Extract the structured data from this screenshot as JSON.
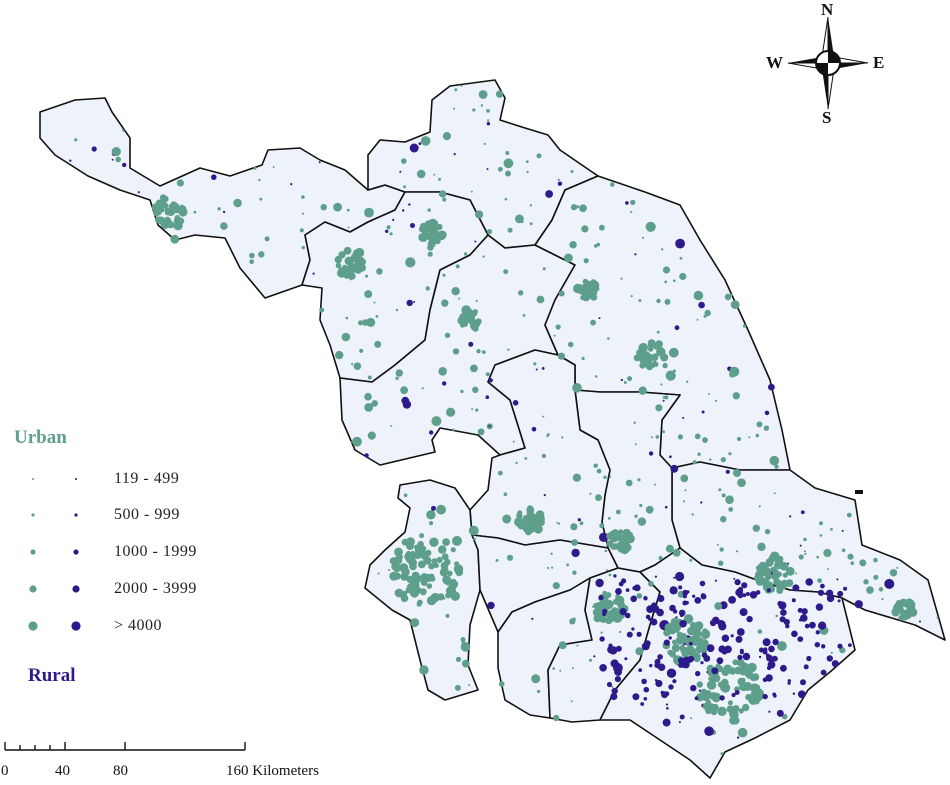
{
  "legend": {
    "urban_title": "Urban",
    "rural_title": "Rural",
    "classes": [
      {
        "label": "119  -  499"
      },
      {
        "label": "500  -  999"
      },
      {
        "label": "1000  -  1999"
      },
      {
        "label": "2000  -  3999"
      },
      {
        "label": "> 4000"
      }
    ]
  },
  "compass": {
    "n": "N",
    "s": "S",
    "e": "E",
    "w": "W"
  },
  "scale_bar": {
    "ticks": [
      "0",
      "40",
      "80",
      "160 Kilometers"
    ]
  },
  "colors": {
    "urban": "#5e9f8c",
    "rural": "#2e1a8a",
    "land": "#eef2fa"
  }
}
